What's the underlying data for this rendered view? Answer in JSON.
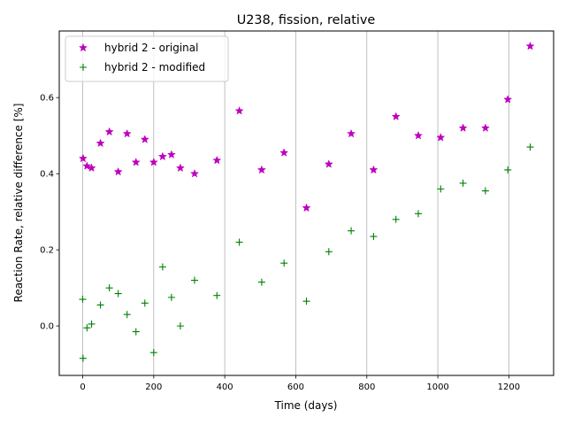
{
  "chart_data": {
    "type": "scatter",
    "title": "U238, fission, relative",
    "xlabel": "Time (days)",
    "ylabel": "Reaction Rate, relative difference [%]",
    "xlim": [
      -66,
      1326
    ],
    "ylim": [
      -0.13,
      0.775
    ],
    "x_ticks": [
      0,
      200,
      400,
      600,
      800,
      1000,
      1200
    ],
    "y_ticks": [
      0.0,
      0.2,
      0.4,
      0.6
    ],
    "x_tick_labels": [
      "0",
      "200",
      "400",
      "600",
      "800",
      "1000",
      "1200"
    ],
    "y_tick_labels": [
      "0.0",
      "0.2",
      "0.4",
      "0.6"
    ],
    "grid": "x-only",
    "legend_position": "upper-left",
    "series": [
      {
        "name": "hybrid 2 - original",
        "marker": "star",
        "color": "#bf00bf",
        "x": [
          1,
          12,
          25,
          50,
          75,
          100,
          125,
          150,
          175,
          200,
          225,
          250,
          275,
          315,
          378,
          441,
          504,
          567,
          630,
          693,
          756,
          819,
          882,
          945,
          1008,
          1071,
          1134,
          1197,
          1260
        ],
        "y": [
          0.44,
          0.42,
          0.415,
          0.48,
          0.51,
          0.405,
          0.505,
          0.43,
          0.49,
          0.43,
          0.445,
          0.45,
          0.415,
          0.4,
          0.435,
          0.565,
          0.41,
          0.455,
          0.31,
          0.425,
          0.505,
          0.41,
          0.55,
          0.5,
          0.495,
          0.52,
          0.52,
          0.595,
          0.735
        ]
      },
      {
        "name": "hybrid 2 - modified",
        "marker": "plus",
        "color": "#008000",
        "x": [
          0,
          1,
          12,
          25,
          50,
          75,
          100,
          125,
          150,
          175,
          200,
          225,
          250,
          275,
          315,
          378,
          441,
          504,
          567,
          630,
          693,
          756,
          819,
          882,
          945,
          1008,
          1071,
          1134,
          1197,
          1260
        ],
        "y": [
          0.07,
          -0.085,
          -0.005,
          0.005,
          0.055,
          0.1,
          0.085,
          0.03,
          -0.015,
          0.06,
          -0.07,
          0.155,
          0.075,
          0.0,
          0.12,
          0.08,
          0.22,
          0.115,
          0.165,
          0.065,
          0.195,
          0.25,
          0.235,
          0.28,
          0.295,
          0.36,
          0.375,
          0.355,
          0.41,
          0.47
        ]
      }
    ]
  }
}
